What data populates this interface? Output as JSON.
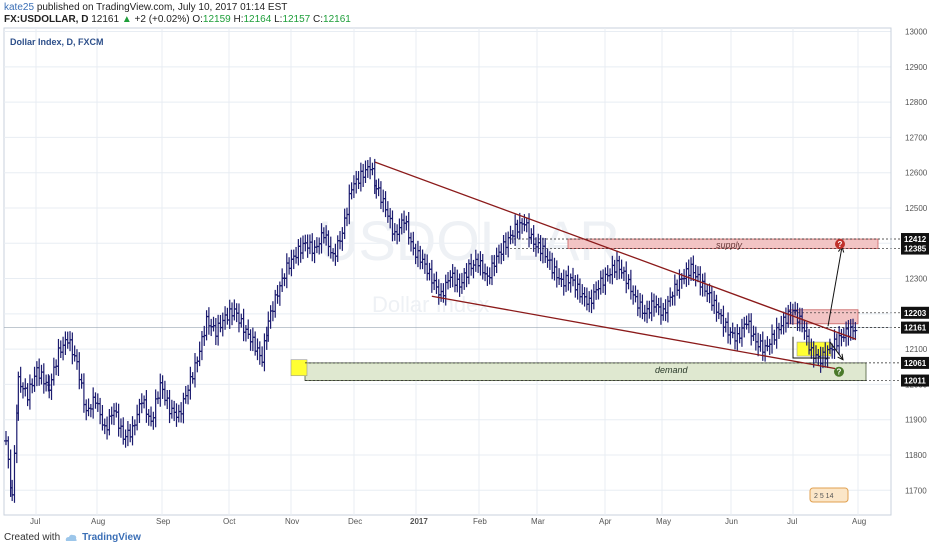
{
  "header": {
    "user": "kate25",
    "published_text": "published on TradingView.com, July 10, 2017 01:14 EST",
    "symbol": "FX:USDOLLAR, D",
    "last": "12161",
    "change": "+2 (+0.02%)",
    "o_label": "O:",
    "o": "12159",
    "h_label": "H:",
    "h": "12164",
    "l_label": "L:",
    "l": "12157",
    "c_label": "C:",
    "c": "12161"
  },
  "chart_title": "Dollar Index, D, FXCM",
  "watermark_big": "USDOLLAR",
  "watermark_small": "Dollar Index",
  "footer": {
    "created_with": "Created with",
    "brand": "TradingView"
  },
  "colors": {
    "bar": "#1a1a6e",
    "trendline": "#8b1a1a",
    "supply_fill": "#f2c4c4",
    "demand_fill": "#dfe8d0",
    "yellow": "#ffff33",
    "badge_red": "#c0302a",
    "badge_green": "#4a7a2a",
    "grid": "#e8edf3"
  },
  "chart_data": {
    "type": "candlestick",
    "title": "Dollar Index, D, FXCM",
    "y_ticks": [
      11700,
      11800,
      11900,
      12000,
      12100,
      12200,
      12300,
      12400,
      12500,
      12600,
      12700,
      12800,
      12900,
      13000
    ],
    "ylim": [
      11630,
      13010
    ],
    "x_ticks": [
      "Jul",
      "Aug",
      "Sep",
      "Oct",
      "Nov",
      "Dec",
      "2017",
      "Feb",
      "Mar",
      "Apr",
      "May",
      "Jun",
      "Jul",
      "Aug"
    ],
    "price_labels": [
      "12412",
      "12385",
      "12203",
      "12161",
      "12061",
      "12011"
    ],
    "zones": [
      {
        "label": "supply",
        "top": 12412,
        "bottom": 12385
      },
      {
        "label": "demand",
        "top": 12061,
        "bottom": 12011
      }
    ],
    "badges": [
      "?",
      "?"
    ],
    "grid": true,
    "series_points": [
      [
        0,
        11840
      ],
      [
        4,
        11680
      ],
      [
        8,
        12010
      ],
      [
        14,
        11970
      ],
      [
        20,
        12040
      ],
      [
        28,
        11990
      ],
      [
        34,
        12090
      ],
      [
        40,
        12130
      ],
      [
        46,
        12060
      ],
      [
        52,
        11920
      ],
      [
        58,
        11960
      ],
      [
        64,
        11870
      ],
      [
        70,
        11930
      ],
      [
        76,
        11850
      ],
      [
        82,
        11870
      ],
      [
        88,
        11960
      ],
      [
        94,
        11890
      ],
      [
        100,
        12000
      ],
      [
        106,
        11930
      ],
      [
        112,
        11910
      ],
      [
        118,
        11990
      ],
      [
        124,
        12070
      ],
      [
        130,
        12180
      ],
      [
        136,
        12150
      ],
      [
        142,
        12190
      ],
      [
        148,
        12210
      ],
      [
        154,
        12160
      ],
      [
        160,
        12120
      ],
      [
        166,
        12070
      ],
      [
        170,
        12180
      ],
      [
        176,
        12260
      ],
      [
        182,
        12330
      ],
      [
        188,
        12370
      ],
      [
        194,
        12400
      ],
      [
        200,
        12380
      ],
      [
        206,
        12430
      ],
      [
        212,
        12360
      ],
      [
        218,
        12430
      ],
      [
        224,
        12560
      ],
      [
        230,
        12590
      ],
      [
        236,
        12620
      ],
      [
        240,
        12560
      ],
      [
        246,
        12500
      ],
      [
        252,
        12420
      ],
      [
        258,
        12470
      ],
      [
        264,
        12380
      ],
      [
        270,
        12350
      ],
      [
        276,
        12300
      ],
      [
        282,
        12250
      ],
      [
        288,
        12310
      ],
      [
        294,
        12280
      ],
      [
        300,
        12330
      ],
      [
        306,
        12350
      ],
      [
        312,
        12300
      ],
      [
        318,
        12360
      ],
      [
        324,
        12400
      ],
      [
        330,
        12440
      ],
      [
        336,
        12460
      ],
      [
        342,
        12400
      ],
      [
        348,
        12380
      ],
      [
        354,
        12330
      ],
      [
        360,
        12290
      ],
      [
        366,
        12300
      ],
      [
        372,
        12260
      ],
      [
        378,
        12230
      ],
      [
        384,
        12280
      ],
      [
        390,
        12310
      ],
      [
        396,
        12340
      ],
      [
        402,
        12300
      ],
      [
        408,
        12240
      ],
      [
        414,
        12200
      ],
      [
        420,
        12230
      ],
      [
        426,
        12200
      ],
      [
        432,
        12260
      ],
      [
        438,
        12300
      ],
      [
        444,
        12330
      ],
      [
        450,
        12290
      ],
      [
        456,
        12250
      ],
      [
        462,
        12200
      ],
      [
        468,
        12150
      ],
      [
        474,
        12130
      ],
      [
        480,
        12180
      ],
      [
        486,
        12120
      ],
      [
        492,
        12100
      ],
      [
        498,
        12140
      ],
      [
        504,
        12180
      ],
      [
        510,
        12210
      ],
      [
        516,
        12170
      ],
      [
        522,
        12090
      ],
      [
        528,
        12070
      ],
      [
        534,
        12100
      ],
      [
        540,
        12130
      ],
      [
        546,
        12150
      ],
      [
        552,
        12160
      ]
    ],
    "trendlines": [
      {
        "from": [
          236,
          12630
        ],
        "to": [
          560,
          12140
        ]
      },
      {
        "from": [
          276,
          12250
        ],
        "to": [
          540,
          12045
        ]
      }
    ]
  }
}
